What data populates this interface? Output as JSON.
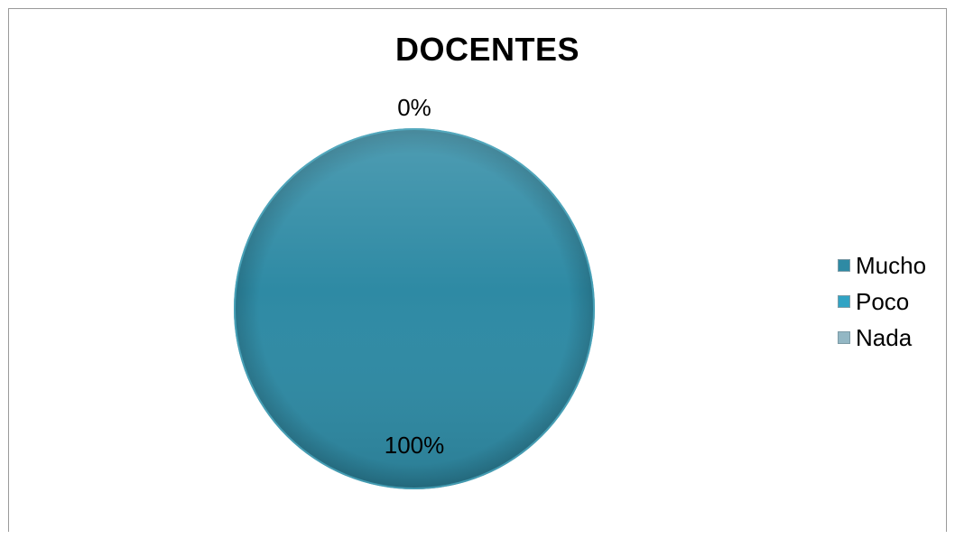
{
  "chart_data": {
    "type": "pie",
    "title": "DOCENTES",
    "categories": [
      "Mucho",
      "Poco",
      "Nada"
    ],
    "values": [
      100,
      0,
      0
    ],
    "data_labels": [
      "100%",
      "0%",
      ""
    ],
    "legend_position": "right",
    "colors": [
      "#2e8aa4",
      "#31a3c4",
      "#93b7c4"
    ]
  }
}
